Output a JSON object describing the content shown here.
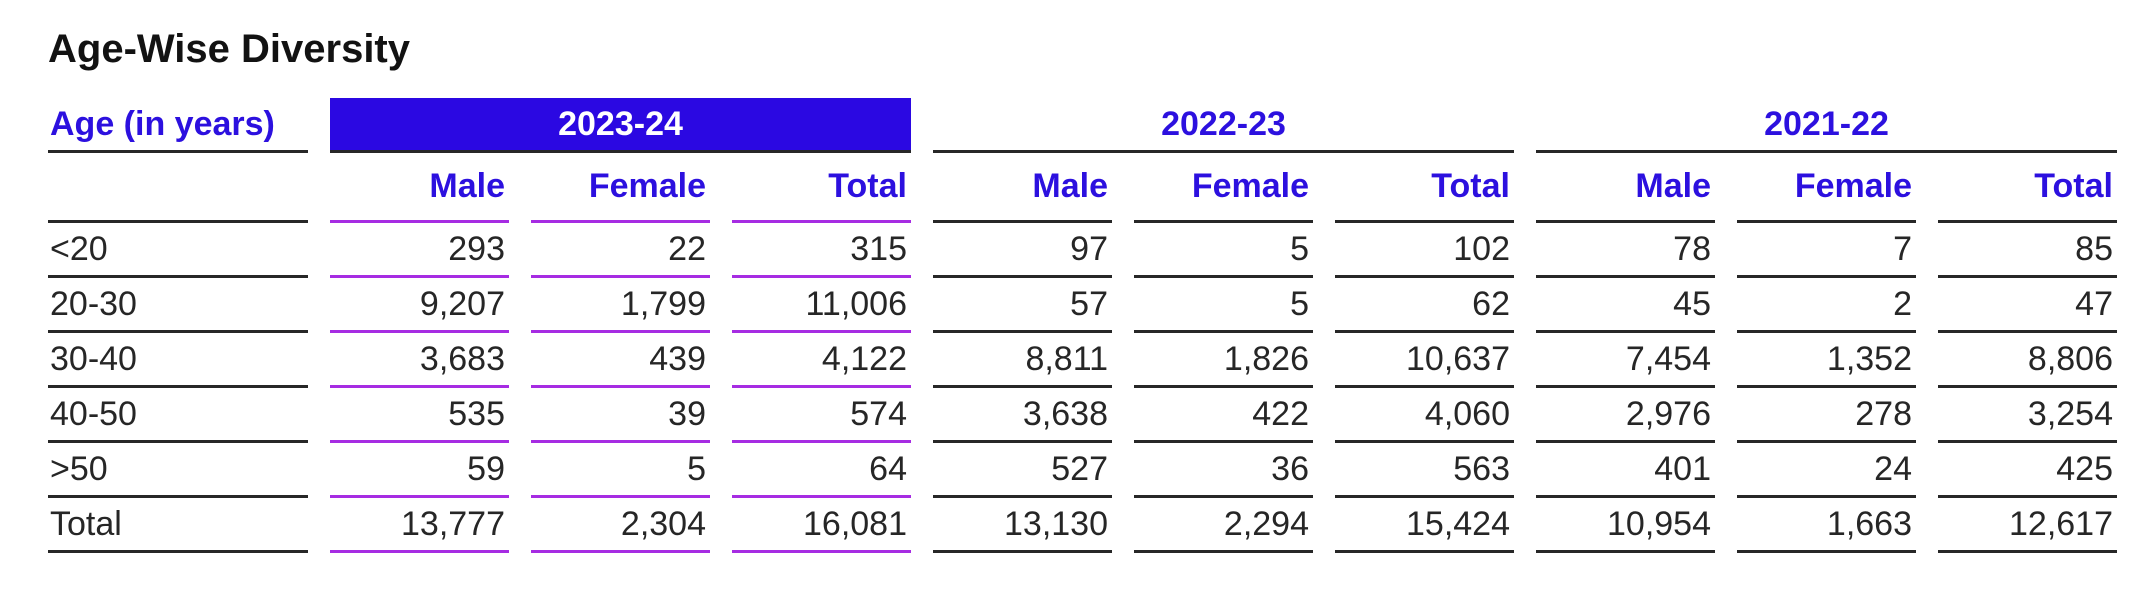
{
  "title": "Age-Wise Diversity",
  "colors": {
    "accent_blue": "#2c10df",
    "highlight_bar_bg": "#2b08e2",
    "highlight_bar_text": "#ffffff",
    "magenta_underline": "#a62ce2",
    "dark_line": "#272727",
    "body_text": "#262626"
  },
  "table": {
    "age_header": "Age (in years)",
    "groups": [
      {
        "year": "2023-24",
        "highlighted": true
      },
      {
        "year": "2022-23",
        "highlighted": false
      },
      {
        "year": "2021-22",
        "highlighted": false
      }
    ],
    "sub_headers": {
      "male": "Male",
      "female": "Female",
      "total": "Total"
    },
    "rows": [
      {
        "age": "<20",
        "values": [
          "293",
          "22",
          "315",
          "97",
          "5",
          "102",
          "78",
          "7",
          "85"
        ]
      },
      {
        "age": "20-30",
        "values": [
          "9,207",
          "1,799",
          "11,006",
          "57",
          "5",
          "62",
          "45",
          "2",
          "47"
        ]
      },
      {
        "age": "30-40",
        "values": [
          "3,683",
          "439",
          "4,122",
          "8,811",
          "1,826",
          "10,637",
          "7,454",
          "1,352",
          "8,806"
        ]
      },
      {
        "age": "40-50",
        "values": [
          "535",
          "39",
          "574",
          "3,638",
          "422",
          "4,060",
          "2,976",
          "278",
          "3,254"
        ]
      },
      {
        "age": ">50",
        "values": [
          "59",
          "5",
          "64",
          "527",
          "36",
          "563",
          "401",
          "24",
          "425"
        ]
      },
      {
        "age": "Total",
        "values": [
          "13,777",
          "2,304",
          "16,081",
          "13,130",
          "2,294",
          "15,424",
          "10,954",
          "1,663",
          "12,617"
        ]
      }
    ]
  },
  "chart_data": {
    "type": "table",
    "title": "Age-Wise Diversity",
    "row_header": "Age (in years)",
    "column_groups": [
      "2023-24",
      "2022-23",
      "2021-22"
    ],
    "sub_columns": [
      "Male",
      "Female",
      "Total"
    ],
    "row_categories": [
      "<20",
      "20-30",
      "30-40",
      "40-50",
      ">50",
      "Total"
    ],
    "values": {
      "2023-24": {
        "Male": [
          293,
          9207,
          3683,
          535,
          59,
          13777
        ],
        "Female": [
          22,
          1799,
          439,
          39,
          5,
          2304
        ],
        "Total": [
          315,
          11006,
          4122,
          574,
          64,
          16081
        ]
      },
      "2022-23": {
        "Male": [
          97,
          57,
          8811,
          3638,
          527,
          13130
        ],
        "Female": [
          5,
          5,
          1826,
          422,
          36,
          2294
        ],
        "Total": [
          102,
          62,
          10637,
          4060,
          563,
          15424
        ]
      },
      "2021-22": {
        "Male": [
          78,
          45,
          7454,
          2976,
          401,
          10954
        ],
        "Female": [
          7,
          2,
          1352,
          278,
          24,
          1663
        ],
        "Total": [
          85,
          47,
          8806,
          3254,
          425,
          12617
        ]
      }
    },
    "layout": {
      "highlighted_group": "2023-24",
      "grid": "horizontal-rules-only",
      "legend": "none"
    }
  }
}
